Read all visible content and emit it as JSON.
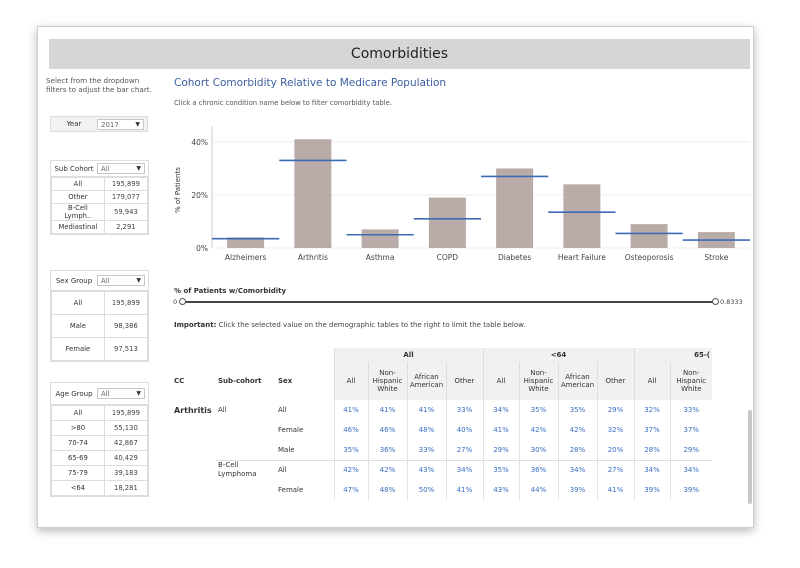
{
  "title": "Comorbidities",
  "left_panel": {
    "instructions": "Select from the dropdown filters to adjust the bar chart.",
    "year": {
      "label": "Year",
      "value": "2017"
    },
    "sub_cohort": {
      "label": "Sub Cohort",
      "value": "All",
      "rows": [
        {
          "label": "All",
          "value": "195,899"
        },
        {
          "label": "Other",
          "value": "179,077"
        },
        {
          "label": "B-Cell Lymph..",
          "value": "59,943"
        },
        {
          "label": "Mediastinal",
          "value": "2,291"
        }
      ]
    },
    "sex_group": {
      "label": "Sex Group",
      "value": "All",
      "rows": [
        {
          "label": "All",
          "value": "195,899"
        },
        {
          "label": "Male",
          "value": "98,386"
        },
        {
          "label": "Female",
          "value": "97,513"
        }
      ]
    },
    "age_group": {
      "label": "Age Group",
      "value": "All",
      "rows": [
        {
          "label": "All",
          "value": "195,899"
        },
        {
          "label": ">80",
          "value": "55,130"
        },
        {
          "label": "70-74",
          "value": "42,867"
        },
        {
          "label": "65-69",
          "value": "40,429"
        },
        {
          "label": "75-79",
          "value": "39,183"
        },
        {
          "label": "<64",
          "value": "18,281"
        }
      ]
    }
  },
  "main": {
    "title": "Cohort Comorbidity Relative to Medicare Population",
    "subtitle": "Click a chronic condition name below to filter comorbidity table.",
    "slider": {
      "label": "% of Patients w/Comorbidity",
      "min": "0",
      "max": "0.8333",
      "low": 0.0,
      "high": 1.0
    },
    "important_bold": "Important:",
    "important_text": "Click the selected value on the demographic tables to the right to limit the table below."
  },
  "chart_data": {
    "type": "bar",
    "ylabel": "% of Patients",
    "ylim": [
      0,
      0.46
    ],
    "yticks": [
      0,
      0.2,
      0.4
    ],
    "ytick_labels": [
      "0%",
      "20%",
      "40%"
    ],
    "categories": [
      "Alzheimers",
      "Arthritis",
      "Asthma",
      "COPD",
      "Diabetes",
      "Heart Failure",
      "Osteoporosis",
      "Stroke"
    ],
    "values": [
      0.04,
      0.41,
      0.07,
      0.19,
      0.3,
      0.24,
      0.09,
      0.06
    ],
    "reference_values": [
      0.035,
      0.33,
      0.05,
      0.11,
      0.27,
      0.135,
      0.055,
      0.03
    ],
    "bar_color": "#b9aca8",
    "reference_color": "#3c6ab5"
  },
  "table": {
    "col_cc": "CC",
    "col_subcohort": "Sub-cohort",
    "col_sex": "Sex",
    "groups": [
      "All",
      "<64",
      "65-("
    ],
    "subcols": [
      "All",
      "Non-Hispanic White",
      "African American",
      "Other"
    ],
    "subcols_partial": [
      "All",
      "Non-Hispanic White"
    ],
    "rows": [
      {
        "cc": "Arthritis",
        "subcohort": "All",
        "sex": "All",
        "values": [
          "41%",
          "41%",
          "41%",
          "33%",
          "34%",
          "35%",
          "35%",
          "29%",
          "32%",
          "33%"
        ]
      },
      {
        "cc": "",
        "subcohort": "",
        "sex": "Female",
        "values": [
          "46%",
          "46%",
          "48%",
          "40%",
          "41%",
          "42%",
          "42%",
          "32%",
          "37%",
          "37%"
        ]
      },
      {
        "cc": "",
        "subcohort": "",
        "sex": "Male",
        "values": [
          "35%",
          "36%",
          "33%",
          "27%",
          "29%",
          "30%",
          "28%",
          "20%",
          "28%",
          "29%"
        ]
      },
      {
        "cc": "",
        "subcohort": "B-Cell Lymphoma",
        "sex": "All",
        "values": [
          "42%",
          "42%",
          "43%",
          "34%",
          "35%",
          "36%",
          "34%",
          "27%",
          "34%",
          "34%"
        ]
      },
      {
        "cc": "",
        "subcohort": "",
        "sex": "Female",
        "values": [
          "47%",
          "48%",
          "50%",
          "41%",
          "43%",
          "44%",
          "39%",
          "41%",
          "39%",
          "39%"
        ]
      }
    ]
  }
}
